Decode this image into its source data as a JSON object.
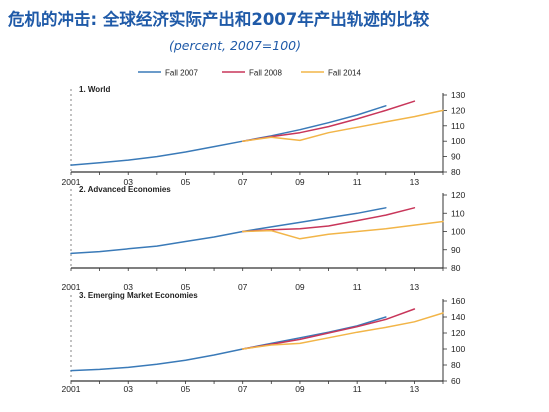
{
  "title": "危机的冲击: 全球经济实际产出和2007年产出轨迹的比较",
  "subtitle": "(percent, 2007=100)",
  "legend": [
    {
      "name": "Fall 2007",
      "color": "#3a7ab8"
    },
    {
      "name": "Fall 2008",
      "color": "#c8365a"
    },
    {
      "name": "Fall 2014",
      "color": "#f2b548"
    }
  ],
  "chart_data": [
    {
      "type": "line",
      "title": "1. World",
      "xlim": [
        2001,
        2014
      ],
      "ylim": [
        80,
        130
      ],
      "yticks": [
        80,
        90,
        100,
        110,
        120,
        130
      ],
      "xticks": [
        "2001",
        "03",
        "05",
        "07",
        "09",
        "11",
        "13"
      ],
      "grid": false,
      "series": [
        {
          "name": "Fall 2007",
          "x": [
            2001,
            2002,
            2003,
            2004,
            2005,
            2006,
            2007,
            2008,
            2009,
            2010,
            2011,
            2012
          ],
          "y": [
            84.5,
            86,
            87.7,
            90,
            93,
            96.5,
            100,
            103.5,
            107.5,
            112,
            117,
            123
          ]
        },
        {
          "name": "Fall 2008",
          "x": [
            2007,
            2008,
            2009,
            2010,
            2011,
            2012,
            2013
          ],
          "y": [
            100,
            103,
            105.5,
            109.5,
            114.5,
            120,
            126
          ]
        },
        {
          "name": "Fall 2014",
          "x": [
            2007,
            2008,
            2009,
            2010,
            2011,
            2012,
            2013,
            2014
          ],
          "y": [
            100,
            102.5,
            100.5,
            105.5,
            109,
            112.5,
            116,
            120
          ]
        }
      ]
    },
    {
      "type": "line",
      "title": "2. Advanced Economies",
      "xlim": [
        2001,
        2014
      ],
      "ylim": [
        80,
        120
      ],
      "yticks": [
        80,
        90,
        100,
        110,
        120
      ],
      "xticks": [
        "2001",
        "03",
        "05",
        "07",
        "09",
        "11",
        "13"
      ],
      "grid": false,
      "series": [
        {
          "name": "Fall 2007",
          "x": [
            2001,
            2002,
            2003,
            2004,
            2005,
            2006,
            2007,
            2008,
            2009,
            2010,
            2011,
            2012
          ],
          "y": [
            88,
            89,
            90.5,
            92,
            94.5,
            97,
            100,
            102.5,
            105,
            107.5,
            110,
            113
          ]
        },
        {
          "name": "Fall 2008",
          "x": [
            2007,
            2008,
            2009,
            2010,
            2011,
            2012,
            2013
          ],
          "y": [
            100,
            101,
            101.5,
            103,
            106,
            109,
            113
          ]
        },
        {
          "name": "Fall 2014",
          "x": [
            2007,
            2008,
            2009,
            2010,
            2011,
            2012,
            2013,
            2014
          ],
          "y": [
            100,
            100.5,
            96,
            98.5,
            100,
            101.5,
            103.5,
            105.5
          ]
        }
      ]
    },
    {
      "type": "line",
      "title": "3. Emerging Market Economies",
      "xlim": [
        2001,
        2014
      ],
      "ylim": [
        60,
        160
      ],
      "yticks": [
        60,
        80,
        100,
        120,
        140,
        160
      ],
      "xticks": [
        "2001",
        "03",
        "05",
        "07",
        "09",
        "11",
        "13"
      ],
      "grid": false,
      "series": [
        {
          "name": "Fall 2007",
          "x": [
            2001,
            2002,
            2003,
            2004,
            2005,
            2006,
            2007,
            2008,
            2009,
            2010,
            2011,
            2012
          ],
          "y": [
            73,
            74.5,
            77,
            81,
            86,
            92.5,
            100,
            107,
            114,
            121,
            129,
            140
          ]
        },
        {
          "name": "Fall 2008",
          "x": [
            2007,
            2008,
            2009,
            2010,
            2011,
            2012,
            2013
          ],
          "y": [
            100,
            106,
            112,
            120,
            128,
            137,
            150
          ]
        },
        {
          "name": "Fall 2014",
          "x": [
            2007,
            2008,
            2009,
            2010,
            2011,
            2012,
            2013,
            2014
          ],
          "y": [
            100,
            105,
            107,
            114,
            121,
            127,
            134,
            145
          ]
        }
      ]
    }
  ]
}
